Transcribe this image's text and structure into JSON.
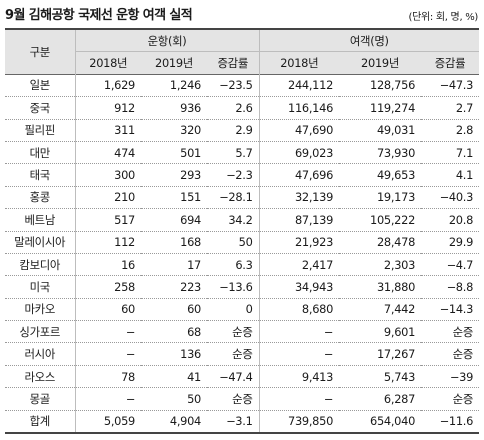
{
  "title": "9월 김해공항 국제선 운항 여객 실적",
  "unit_note": "(단위: 회, 명, %)",
  "table": {
    "corner_label": "구분",
    "groups": [
      "운항(회)",
      "여객(명)"
    ],
    "sub_headers": [
      "2018년",
      "2019년",
      "증감률",
      "2018년",
      "2019년",
      "증감률"
    ],
    "rows": [
      {
        "label": "일본",
        "values": [
          "1,629",
          "1,246",
          "−23.5",
          "244,112",
          "128,756",
          "−47.3"
        ]
      },
      {
        "label": "중국",
        "values": [
          "912",
          "936",
          "2.6",
          "116,146",
          "119,274",
          "2.7"
        ]
      },
      {
        "label": "필리핀",
        "values": [
          "311",
          "320",
          "2.9",
          "47,690",
          "49,031",
          "2.8"
        ]
      },
      {
        "label": "대만",
        "values": [
          "474",
          "501",
          "5.7",
          "69,023",
          "73,930",
          "7.1"
        ]
      },
      {
        "label": "태국",
        "values": [
          "300",
          "293",
          "−2.3",
          "47,696",
          "49,653",
          "4.1"
        ]
      },
      {
        "label": "홍콩",
        "values": [
          "210",
          "151",
          "−28.1",
          "32,139",
          "19,173",
          "−40.3"
        ]
      },
      {
        "label": "베트남",
        "values": [
          "517",
          "694",
          "34.2",
          "87,139",
          "105,222",
          "20.8"
        ]
      },
      {
        "label": "말레이시아",
        "values": [
          "112",
          "168",
          "50",
          "21,923",
          "28,478",
          "29.9"
        ]
      },
      {
        "label": "캄보디아",
        "values": [
          "16",
          "17",
          "6.3",
          "2,417",
          "2,303",
          "−4.7"
        ]
      },
      {
        "label": "미국",
        "values": [
          "258",
          "223",
          "−13.6",
          "34,943",
          "31,880",
          "−8.8"
        ]
      },
      {
        "label": "마카오",
        "values": [
          "60",
          "60",
          "0",
          "8,680",
          "7,442",
          "−14.3"
        ]
      },
      {
        "label": "싱가포르",
        "values": [
          "−",
          "68",
          "순증",
          "−",
          "9,601",
          "순증"
        ]
      },
      {
        "label": "러시아",
        "values": [
          "−",
          "136",
          "순증",
          "−",
          "17,267",
          "순증"
        ]
      },
      {
        "label": "라오스",
        "values": [
          "78",
          "41",
          "−47.4",
          "9,413",
          "5,743",
          "−39"
        ]
      },
      {
        "label": "몽골",
        "values": [
          "−",
          "50",
          "순증",
          "−",
          "6,287",
          "순증"
        ]
      }
    ],
    "total": {
      "label": "합계",
      "values": [
        "5,059",
        "4,904",
        "−3.1",
        "739,850",
        "654,040",
        "−11.6"
      ]
    }
  }
}
